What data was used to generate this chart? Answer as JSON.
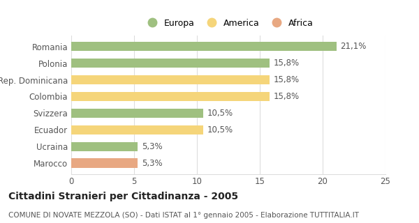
{
  "categories": [
    "Marocco",
    "Ucraina",
    "Ecuador",
    "Svizzera",
    "Colombia",
    "Rep. Dominicana",
    "Polonia",
    "Romania"
  ],
  "values": [
    5.3,
    5.3,
    10.5,
    10.5,
    15.8,
    15.8,
    15.8,
    21.1
  ],
  "labels": [
    "5,3%",
    "5,3%",
    "10,5%",
    "10,5%",
    "15,8%",
    "15,8%",
    "15,8%",
    "21,1%"
  ],
  "colors": [
    "#e8a882",
    "#9fc080",
    "#f5d57a",
    "#9fc080",
    "#f5d57a",
    "#f5d57a",
    "#9fc080",
    "#9fc080"
  ],
  "legend_labels": [
    "Europa",
    "America",
    "Africa"
  ],
  "legend_colors": [
    "#9fc080",
    "#f5d57a",
    "#e8a882"
  ],
  "title": "Cittadini Stranieri per Cittadinanza - 2005",
  "subtitle": "COMUNE DI NOVATE MEZZOLA (SO) - Dati ISTAT al 1° gennaio 2005 - Elaborazione TUTTITALIA.IT",
  "xlim": [
    0,
    25
  ],
  "xticks": [
    0,
    5,
    10,
    15,
    20,
    25
  ],
  "bar_height": 0.55,
  "background_color": "#ffffff",
  "grid_color": "#dddddd",
  "label_fontsize": 8.5,
  "title_fontsize": 10,
  "subtitle_fontsize": 7.5,
  "legend_fontsize": 9
}
